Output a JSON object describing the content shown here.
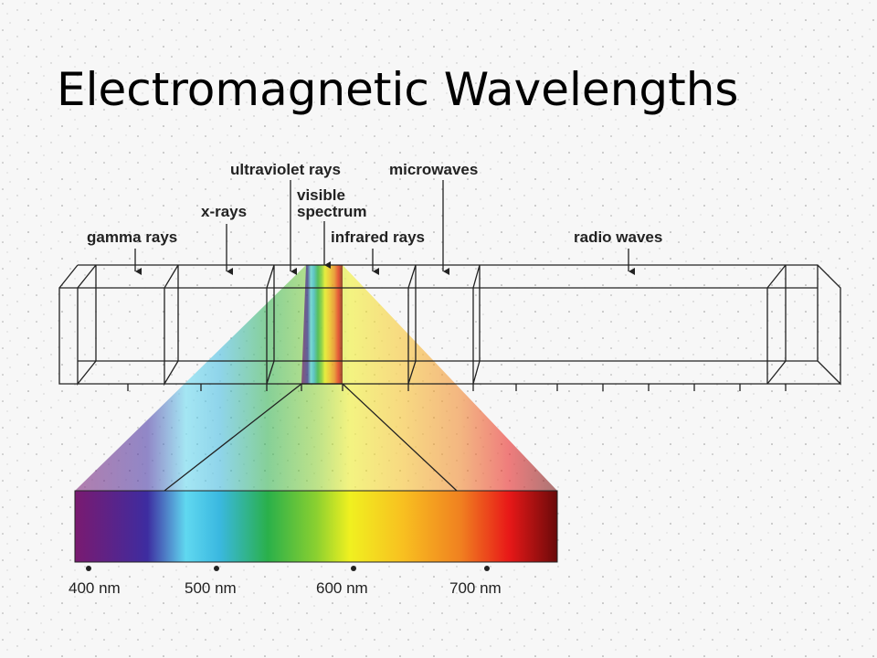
{
  "title": "Electromagnetic Wavelengths",
  "bands": [
    {
      "label": "gamma rays"
    },
    {
      "label": "x-rays"
    },
    {
      "label": "ultraviolet rays"
    },
    {
      "label": [
        "visible",
        "spectrum"
      ]
    },
    {
      "label": "infrared rays"
    },
    {
      "label": "microwaves"
    },
    {
      "label": "radio waves"
    }
  ],
  "scale": [
    "400 nm",
    "500 nm",
    "600 nm",
    "700 nm"
  ]
}
